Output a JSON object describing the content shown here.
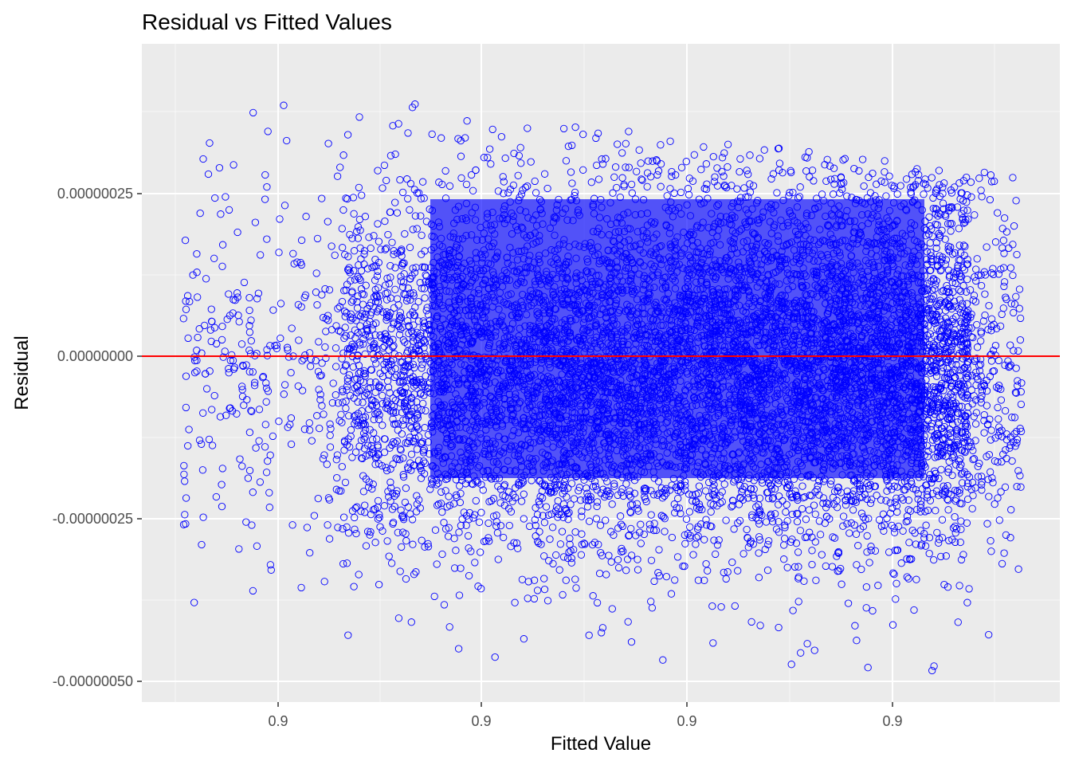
{
  "chart_data": {
    "type": "scatter",
    "title": "Residual vs Fitted Values",
    "xlabel": "Fitted Value",
    "ylabel": "Residual",
    "x_tick_labels": [
      "0.9",
      "0.9",
      "0.9",
      "0.9"
    ],
    "y_ticks": [
      {
        "value": 2.5e-07,
        "label": "0.00000025"
      },
      {
        "value": 0,
        "label": "0.00000000"
      },
      {
        "value": -2.5e-07,
        "label": "-0.00000025"
      },
      {
        "value": -5e-07,
        "label": "-0.00000050"
      }
    ],
    "ylim": [
      -5.2e-07,
      4.3e-07
    ],
    "grid": true,
    "point_color": "#0000FF",
    "reference_line": {
      "y": 0,
      "color": "#FF0000"
    },
    "panel_background": "#EBEBEB",
    "grid_color": "#FFFFFF",
    "description": "Dense cloud of roughly 40,000 hollow blue circles; residuals centered near 0, spread roughly ±0.0000004, band widening to the right with a sloping upper edge"
  }
}
